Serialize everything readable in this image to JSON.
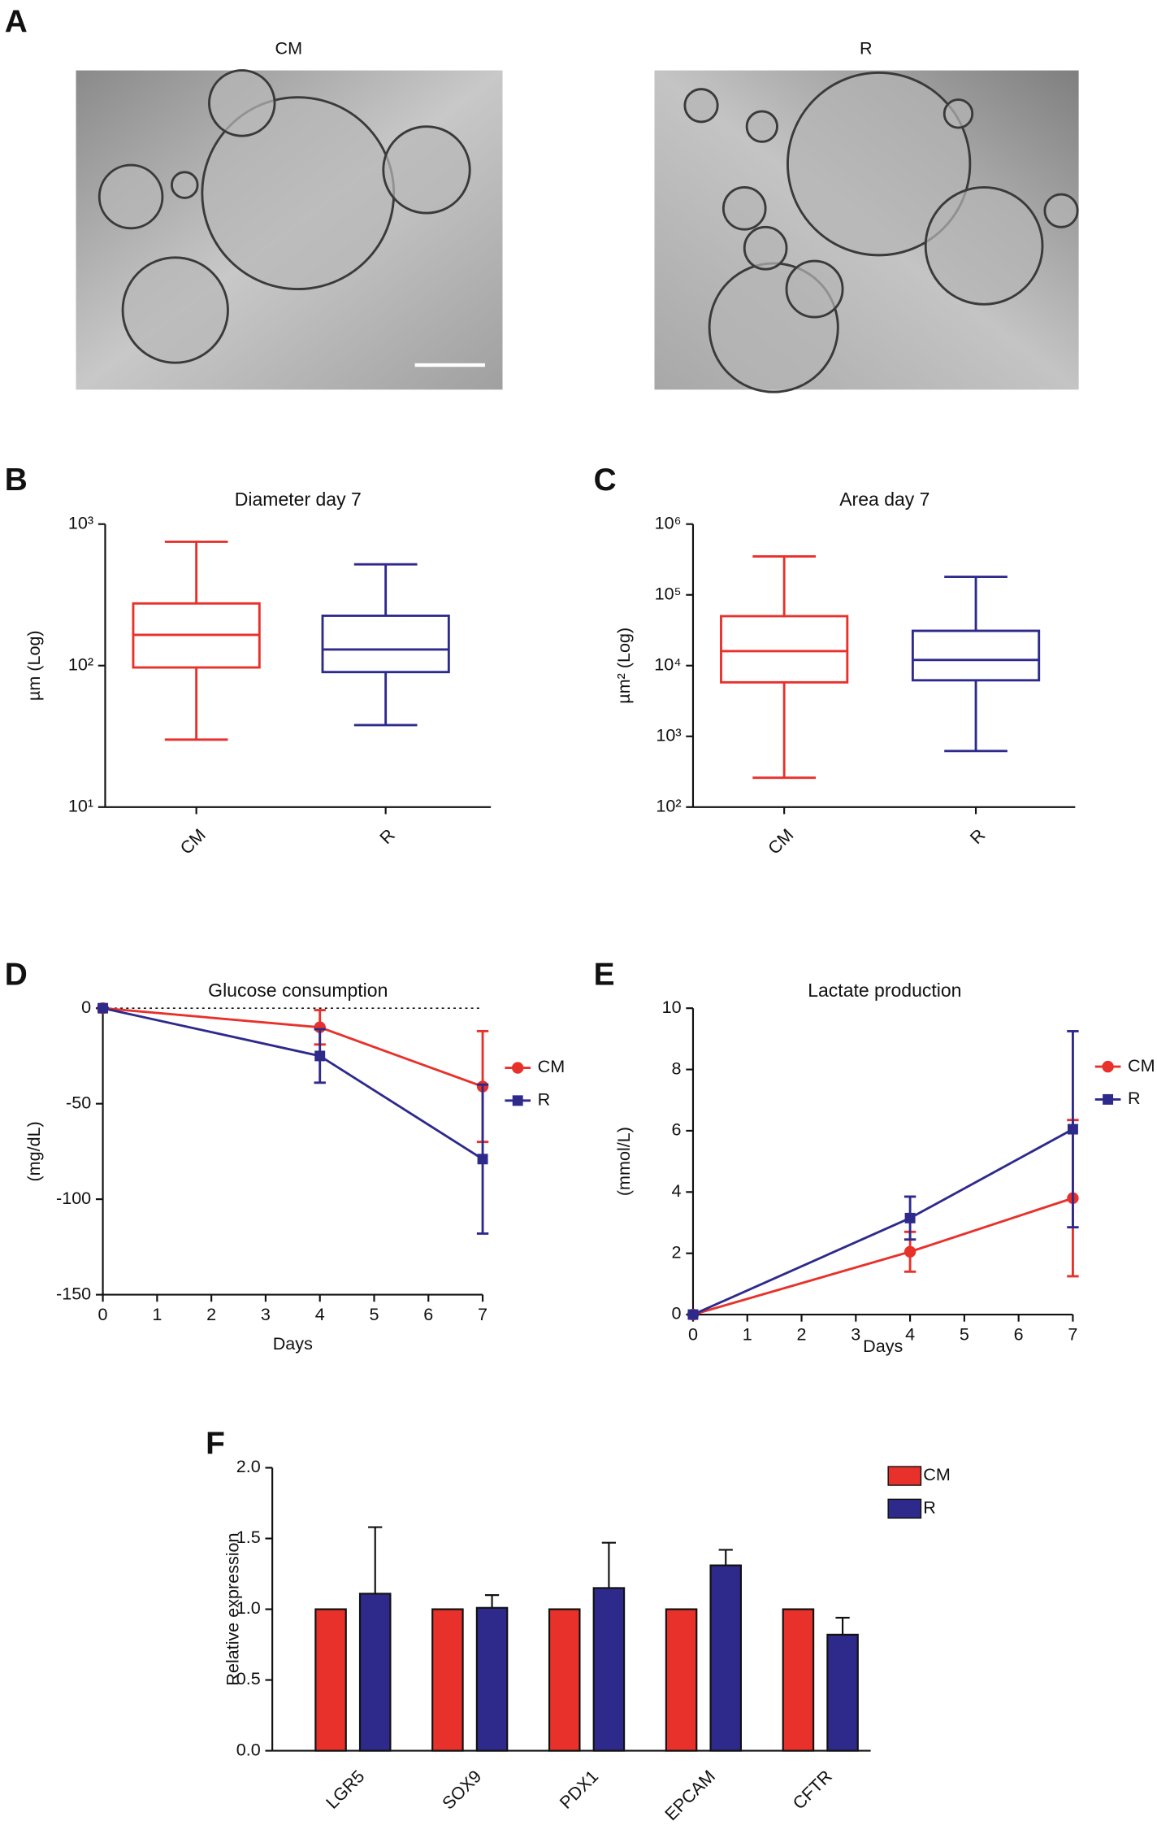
{
  "figure_a": {
    "panel": "A",
    "image_labels": [
      "CM",
      "R"
    ]
  },
  "chart_data": [
    {
      "type": "box",
      "panel": "B",
      "title": "Diameter day 7",
      "ylabel": "µm (Log)",
      "yscale": "log",
      "categories": [
        "CM",
        "R"
      ],
      "colors": [
        "#e8312a",
        "#2e2a8c"
      ],
      "min": [
        30,
        38
      ],
      "q1": [
        97,
        90
      ],
      "median": [
        165,
        130
      ],
      "q3": [
        275,
        225
      ],
      "max": [
        750,
        520
      ],
      "ylim": [
        10,
        1000
      ],
      "yticks": [
        {
          "value": 10,
          "label": "10¹"
        },
        {
          "value": 100,
          "label": "10²"
        },
        {
          "value": 1000,
          "label": "10³"
        }
      ]
    },
    {
      "type": "box",
      "panel": "C",
      "title": "Area day 7",
      "ylabel": "µm² (Log)",
      "yscale": "log",
      "categories": [
        "CM",
        "R"
      ],
      "colors": [
        "#e8312a",
        "#2e2a8c"
      ],
      "min": [
        260,
        620
      ],
      "q1": [
        5800,
        6200
      ],
      "median": [
        16000,
        12000
      ],
      "q3": [
        50000,
        31000
      ],
      "max": [
        350000,
        180000
      ],
      "ylim": [
        100,
        1000000
      ],
      "yticks": [
        {
          "value": 100,
          "label": "10²"
        },
        {
          "value": 1000,
          "label": "10³"
        },
        {
          "value": 10000,
          "label": "10⁴"
        },
        {
          "value": 100000,
          "label": "10⁵"
        },
        {
          "value": 1000000,
          "label": "10⁶"
        }
      ]
    },
    {
      "type": "line",
      "panel": "D",
      "title": "Glucose consumption",
      "ylabel": "(mg/dL)",
      "xlabel": "Days",
      "x": [
        0,
        4,
        7
      ],
      "xlim": [
        0,
        7
      ],
      "xticks": [
        0,
        1,
        2,
        3,
        4,
        5,
        6,
        7
      ],
      "ylim": [
        -150,
        0
      ],
      "yticks": [
        0,
        -50,
        -100,
        -150
      ],
      "reference_line": 0,
      "series": [
        {
          "name": "CM",
          "color": "#e8312a",
          "marker": "circle",
          "values": [
            0,
            -10,
            -41
          ],
          "errors": [
            0,
            9,
            29
          ]
        },
        {
          "name": "R",
          "color": "#2e2a8c",
          "marker": "square",
          "values": [
            0,
            -25,
            -79
          ],
          "errors": [
            0,
            14,
            39
          ]
        }
      ]
    },
    {
      "type": "line",
      "panel": "E",
      "title": "Lactate production",
      "ylabel": "(mmol/L)",
      "xlabel": "Days",
      "x": [
        0,
        4,
        7
      ],
      "xlim": [
        0,
        7
      ],
      "xticks": [
        0,
        1,
        2,
        3,
        4,
        5,
        6,
        7
      ],
      "ylim": [
        0,
        10
      ],
      "yticks": [
        0,
        2,
        4,
        6,
        8,
        10
      ],
      "series": [
        {
          "name": "CM",
          "color": "#e8312a",
          "marker": "circle",
          "values": [
            0,
            2.05,
            3.8
          ],
          "errors": [
            0,
            0.65,
            2.55
          ]
        },
        {
          "name": "R",
          "color": "#2e2a8c",
          "marker": "square",
          "values": [
            0,
            3.15,
            6.05
          ],
          "errors": [
            0,
            0.7,
            3.2
          ]
        }
      ]
    },
    {
      "type": "bar",
      "panel": "F",
      "ylabel": "Relative expression",
      "categories": [
        "LGR5",
        "SOX9",
        "PDX1",
        "EPCAM",
        "CFTR"
      ],
      "ylim": [
        0,
        2
      ],
      "yticks": [
        {
          "value": 0,
          "label": "0.0"
        },
        0.5,
        {
          "value": 1,
          "label": "1.0"
        },
        1.5,
        {
          "value": 2,
          "label": "2.0"
        }
      ],
      "series": [
        {
          "name": "CM",
          "color": "#e8312a",
          "values": [
            1,
            1,
            1,
            1,
            1
          ]
        },
        {
          "name": "R",
          "color": "#2e2a8c",
          "values": [
            1.11,
            1.01,
            1.15,
            1.31,
            0.82
          ],
          "errors": [
            0.47,
            0.09,
            0.32,
            0.11,
            0.12
          ]
        }
      ]
    }
  ]
}
